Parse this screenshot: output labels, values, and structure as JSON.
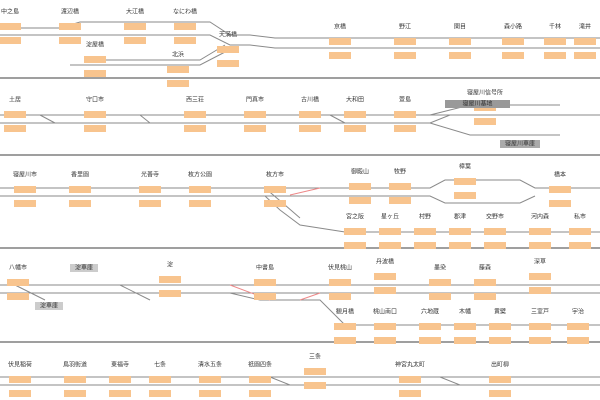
{
  "rows": [
    {
      "stations": [
        "中之島",
        "渡辺橋",
        "大江橋",
        "なにわ橋",
        "淀屋橋",
        "北浜",
        "天満橋",
        "京橋",
        "野江",
        "関目",
        "森小路",
        "千林",
        "滝井"
      ]
    },
    {
      "stations": [
        "土居",
        "守口市",
        "西三荘",
        "門真市",
        "古川橋",
        "大和田",
        "萱島",
        "寝屋川信号所"
      ]
    },
    {
      "stations": [
        "寝屋川市",
        "香里園",
        "光善寺",
        "枚方公園",
        "枚方市",
        "御殿山",
        "牧野",
        "樟葉",
        "橋本",
        "宮之阪",
        "星ヶ丘",
        "村野",
        "郡津",
        "交野市",
        "河内森",
        "私市"
      ]
    },
    {
      "stations": [
        "八幡市",
        "淀",
        "中書島",
        "伏見桃山",
        "丹波橋",
        "墨染",
        "藤森",
        "深草",
        "観月橋",
        "桃山南口",
        "六地蔵",
        "木幡",
        "黄檗",
        "三室戸",
        "宇治"
      ]
    },
    {
      "stations": [
        "伏見稲荷",
        "鳥羽街道",
        "東福寺",
        "七条",
        "清水五条",
        "祇園四条",
        "三条",
        "神宮丸太町",
        "出町柳"
      ]
    }
  ],
  "depots": [
    "寝屋川基地",
    "寝屋川車庫",
    "淀車庫",
    "淀車庫"
  ]
}
